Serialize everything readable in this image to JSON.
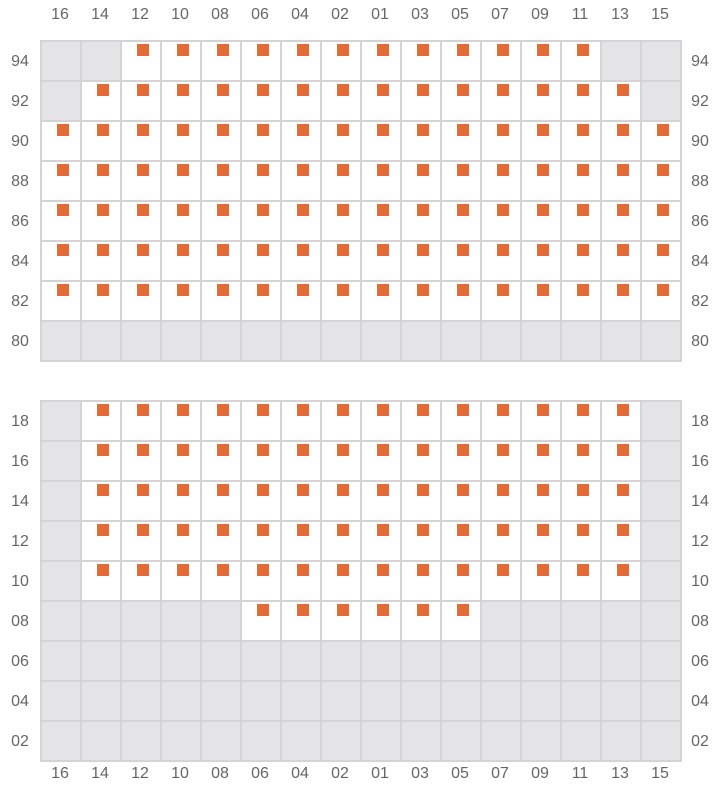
{
  "columns": [
    "16",
    "14",
    "12",
    "10",
    "08",
    "06",
    "04",
    "02",
    "01",
    "03",
    "05",
    "07",
    "09",
    "11",
    "13",
    "15"
  ],
  "colors": {
    "seat": "#e36b35",
    "unavailable": "#e4e4e7",
    "grid": "#d4d4d8"
  },
  "sections": [
    {
      "rows": [
        {
          "label": "94",
          "seats": "0011111111111100"
        },
        {
          "label": "92",
          "seats": "0111111111111110"
        },
        {
          "label": "90",
          "seats": "1111111111111111"
        },
        {
          "label": "88",
          "seats": "1111111111111111"
        },
        {
          "label": "86",
          "seats": "1111111111111111"
        },
        {
          "label": "84",
          "seats": "1111111111111111"
        },
        {
          "label": "82",
          "seats": "1111111111111111"
        },
        {
          "label": "80",
          "seats": "0000000000000000"
        }
      ]
    },
    {
      "rows": [
        {
          "label": "18",
          "seats": "0111111111111110"
        },
        {
          "label": "16",
          "seats": "0111111111111110"
        },
        {
          "label": "14",
          "seats": "0111111111111110"
        },
        {
          "label": "12",
          "seats": "0111111111111110"
        },
        {
          "label": "10",
          "seats": "0111111111111110"
        },
        {
          "label": "08",
          "seats": "0000011111100000"
        },
        {
          "label": "06",
          "seats": "0000000000000000"
        },
        {
          "label": "04",
          "seats": "0000000000000000"
        },
        {
          "label": "02",
          "seats": "0000000000000000"
        }
      ]
    }
  ]
}
